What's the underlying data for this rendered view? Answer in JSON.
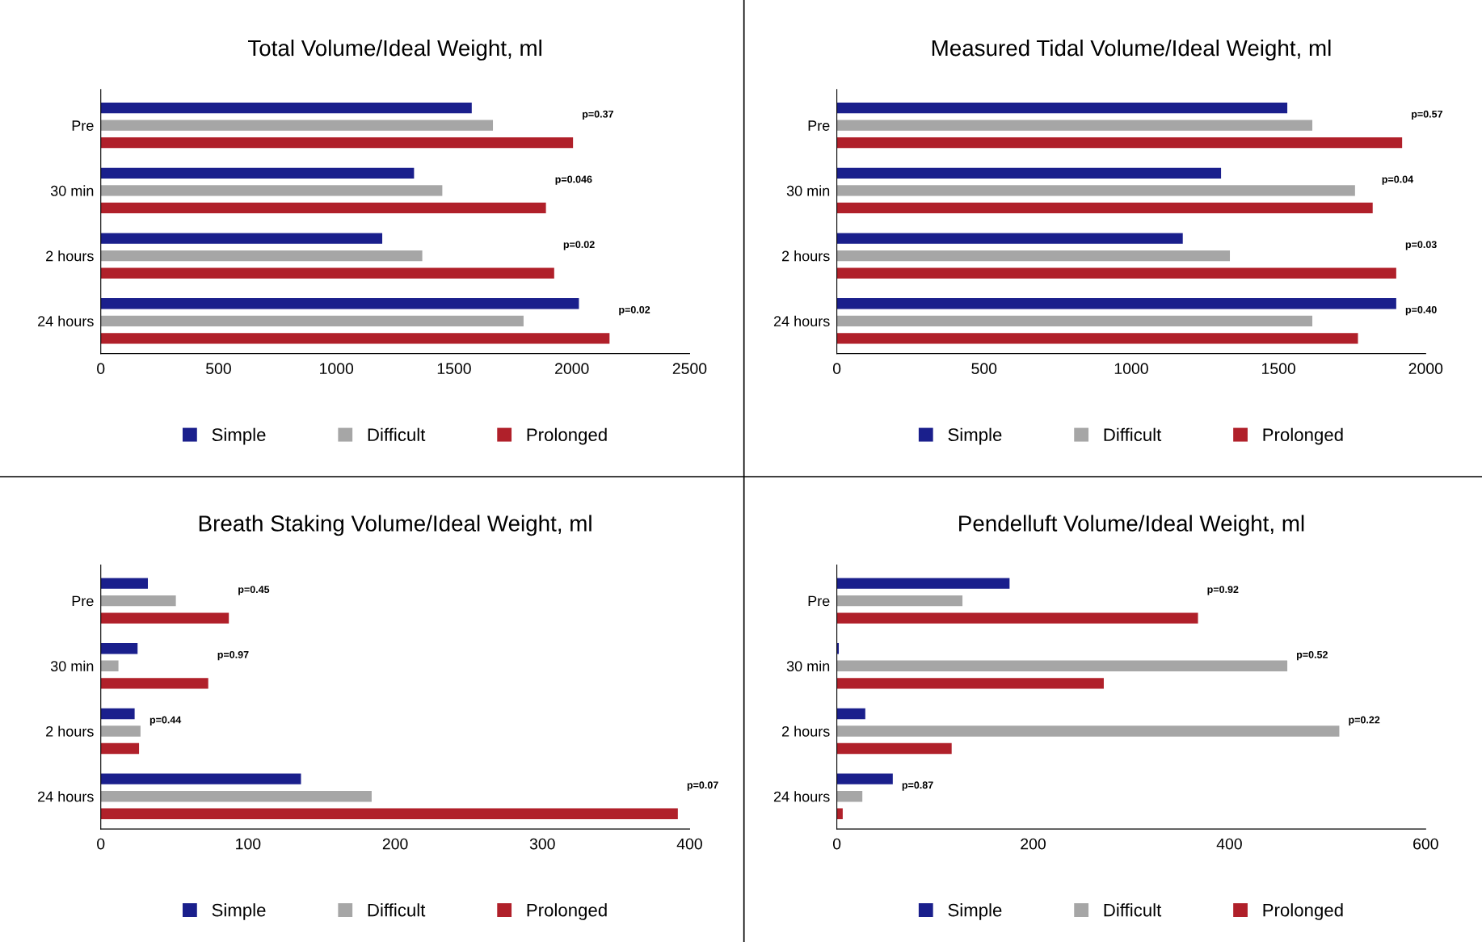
{
  "chart_data": [
    {
      "type": "bar",
      "orientation": "horizontal",
      "title": "Total Volume/Ideal Weight, ml",
      "categories": [
        "Pre",
        "30 min",
        "2 hours",
        "24 hours"
      ],
      "series": [
        {
          "name": "Simple",
          "color": "#1a1f8c",
          "values": [
            1575,
            1330,
            1195,
            2030
          ]
        },
        {
          "name": "Difficult",
          "color": "#a6a6a6",
          "values": [
            1665,
            1450,
            1365,
            1795
          ]
        },
        {
          "name": "Prolonged",
          "color": "#b0202a",
          "values": [
            2005,
            1890,
            1925,
            2160
          ]
        }
      ],
      "xlim": [
        0,
        2500
      ],
      "xticks": [
        0,
        500,
        1000,
        1500,
        2000,
        2500
      ],
      "grid": false,
      "legend": "bottom",
      "annotations": [
        "p=0.37",
        "p=0.046",
        "p=0.02",
        "p=0.02"
      ]
    },
    {
      "type": "bar",
      "orientation": "horizontal",
      "title": "Measured Tidal Volume/Ideal Weight, ml",
      "categories": [
        "Pre",
        "30 min",
        "2 hours",
        "24 hours"
      ],
      "series": [
        {
          "name": "Simple",
          "color": "#1a1f8c",
          "values": [
            1530,
            1305,
            1175,
            1900
          ]
        },
        {
          "name": "Difficult",
          "color": "#a6a6a6",
          "values": [
            1615,
            1760,
            1335,
            1615
          ]
        },
        {
          "name": "Prolonged",
          "color": "#b0202a",
          "values": [
            1920,
            1820,
            1900,
            1770
          ]
        }
      ],
      "xlim": [
        0,
        2000
      ],
      "xticks": [
        0,
        500,
        1000,
        1500,
        2000
      ],
      "grid": false,
      "legend": "bottom",
      "annotations": [
        "p=0.57",
        "p=0.04",
        "p=0.03",
        "p=0.40"
      ]
    },
    {
      "type": "bar",
      "orientation": "horizontal",
      "title": "Breath Staking Volume/Ideal Weight, ml",
      "categories": [
        "Pre",
        "30 min",
        "2 hours",
        "24 hours"
      ],
      "series": [
        {
          "name": "Simple",
          "color": "#1a1f8c",
          "values": [
            32,
            25,
            23,
            136
          ]
        },
        {
          "name": "Difficult",
          "color": "#a6a6a6",
          "values": [
            51,
            12,
            27,
            184
          ]
        },
        {
          "name": "Prolonged",
          "color": "#b0202a",
          "values": [
            87,
            73,
            26,
            392
          ]
        }
      ],
      "xlim": [
        0,
        400
      ],
      "xticks": [
        0,
        100,
        200,
        300,
        400
      ],
      "grid": false,
      "legend": "bottom",
      "annotations": [
        "p=0.45",
        "p=0.97",
        "p=0.44",
        "p=0.07"
      ]
    },
    {
      "type": "bar",
      "orientation": "horizontal",
      "title": "Pendelluft Volume/Ideal Weight, ml",
      "categories": [
        "Pre",
        "30 min",
        "2 hours",
        "24 hours"
      ],
      "series": [
        {
          "name": "Simple",
          "color": "#1a1f8c",
          "values": [
            176,
            2,
            29,
            57
          ]
        },
        {
          "name": "Difficult",
          "color": "#a6a6a6",
          "values": [
            128,
            459,
            512,
            26
          ]
        },
        {
          "name": "Prolonged",
          "color": "#b0202a",
          "values": [
            368,
            272,
            117,
            6
          ]
        }
      ],
      "xlim": [
        0,
        600
      ],
      "xticks": [
        0,
        200,
        400,
        600
      ],
      "grid": false,
      "legend": "bottom",
      "annotations": [
        "p=0.92",
        "p=0.52",
        "p=0.22",
        "p=0.87"
      ]
    }
  ]
}
